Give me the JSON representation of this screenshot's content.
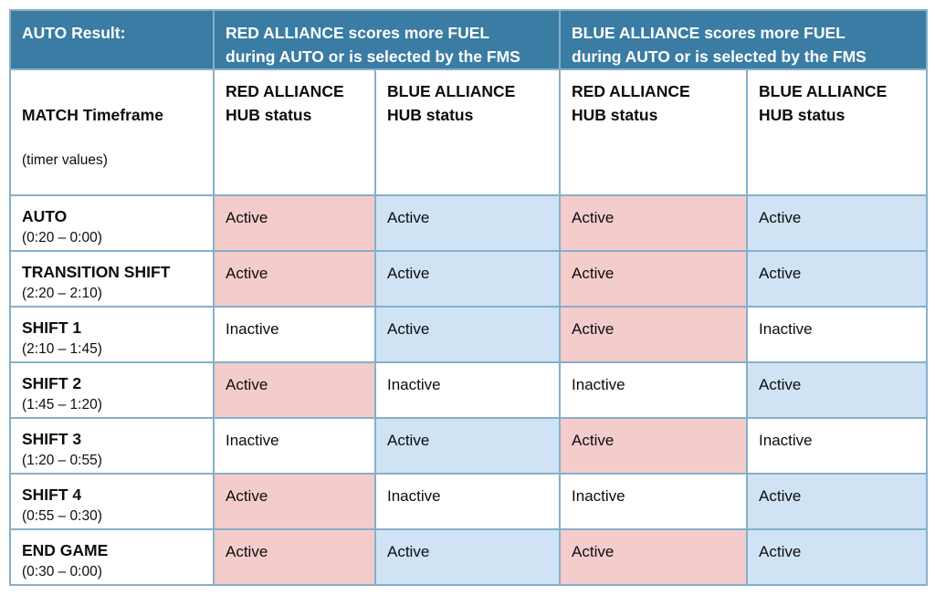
{
  "colors": {
    "header_bg": "#3a7ca3",
    "border": "#86afca",
    "red_cell": "#f4cccc",
    "blue_cell": "#cfe3f5"
  },
  "table": {
    "auto_result_label": "AUTO Result:",
    "red_result_header": "RED ALLIANCE scores more FUEL\nduring AUTO or is selected by the FMS",
    "blue_result_header": "BLUE ALLIANCE scores more FUEL\nduring AUTO or is selected by the FMS",
    "timeframe_header": {
      "title": "MATCH Timeframe",
      "subtitle": "(timer values)"
    },
    "status_columns": [
      "RED ALLIANCE\nHUB status",
      "BLUE ALLIANCE\nHUB status",
      "RED ALLIANCE\nHUB status",
      "BLUE ALLIANCE\nHUB status"
    ],
    "rows": [
      {
        "phase": "AUTO",
        "timer": "(0:20 – 0:00)",
        "statuses": [
          {
            "label": "Active",
            "color": "red"
          },
          {
            "label": "Active",
            "color": "blue"
          },
          {
            "label": "Active",
            "color": "red"
          },
          {
            "label": "Active",
            "color": "blue"
          }
        ]
      },
      {
        "phase": "TRANSITION SHIFT",
        "timer": "(2:20 – 2:10)",
        "statuses": [
          {
            "label": "Active",
            "color": "red"
          },
          {
            "label": "Active",
            "color": "blue"
          },
          {
            "label": "Active",
            "color": "red"
          },
          {
            "label": "Active",
            "color": "blue"
          }
        ]
      },
      {
        "phase": "SHIFT 1",
        "timer": "(2:10 – 1:45)",
        "statuses": [
          {
            "label": "Inactive",
            "color": "none"
          },
          {
            "label": "Active",
            "color": "blue"
          },
          {
            "label": "Active",
            "color": "red"
          },
          {
            "label": "Inactive",
            "color": "none"
          }
        ]
      },
      {
        "phase": "SHIFT 2",
        "timer": "(1:45 – 1:20)",
        "statuses": [
          {
            "label": "Active",
            "color": "red"
          },
          {
            "label": "Inactive",
            "color": "none"
          },
          {
            "label": "Inactive",
            "color": "none"
          },
          {
            "label": "Active",
            "color": "blue"
          }
        ]
      },
      {
        "phase": "SHIFT 3",
        "timer": "(1:20 – 0:55)",
        "statuses": [
          {
            "label": "Inactive",
            "color": "none"
          },
          {
            "label": "Active",
            "color": "blue"
          },
          {
            "label": "Active",
            "color": "red"
          },
          {
            "label": "Inactive",
            "color": "none"
          }
        ]
      },
      {
        "phase": "SHIFT 4",
        "timer": "(0:55 – 0:30)",
        "statuses": [
          {
            "label": "Active",
            "color": "red"
          },
          {
            "label": "Inactive",
            "color": "none"
          },
          {
            "label": "Inactive",
            "color": "none"
          },
          {
            "label": "Active",
            "color": "blue"
          }
        ]
      },
      {
        "phase": "END GAME",
        "timer": "(0:30 – 0:00)",
        "statuses": [
          {
            "label": "Active",
            "color": "red"
          },
          {
            "label": "Active",
            "color": "blue"
          },
          {
            "label": "Active",
            "color": "red"
          },
          {
            "label": "Active",
            "color": "blue"
          }
        ]
      }
    ]
  }
}
